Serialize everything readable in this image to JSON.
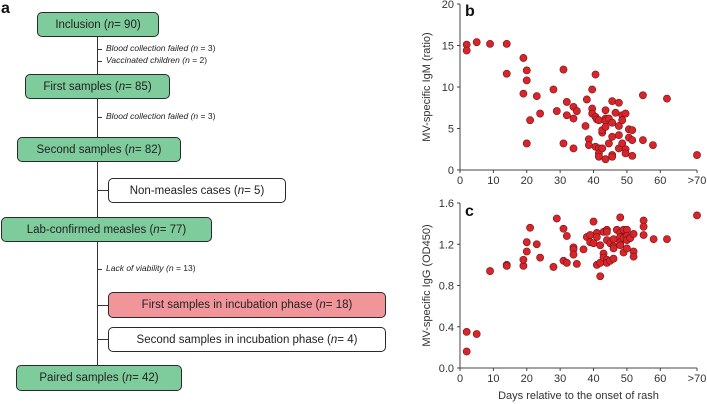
{
  "panel_a": {
    "letter": "a",
    "boxes": [
      {
        "text": "Inclusion (",
        "n": "n",
        "rest": " = 90)"
      },
      {
        "text": "First samples (",
        "n": "n",
        "rest": " = 85)"
      },
      {
        "text": "Second samples (",
        "n": "n",
        "rest": " = 82)"
      },
      {
        "text": "Non-measles cases (",
        "n": "n",
        "rest": " = 5)"
      },
      {
        "text": "Lab-confirmed measles (",
        "n": "n",
        "rest": " = 77)"
      },
      {
        "text": "First samples in incubation phase (",
        "n": "n",
        "rest": " = 18)"
      },
      {
        "text": "Second samples in incubation phase (",
        "n": "n",
        "rest": " = 4)"
      },
      {
        "text": "Paired samples (",
        "n": "n",
        "rest": " = 42)"
      }
    ],
    "notes": [
      {
        "text": "Blood collection failed (",
        "n": "n",
        "rest": " = 3)"
      },
      {
        "text": "Vaccinated children (",
        "n": "n",
        "rest": " = 2)"
      },
      {
        "text": "Blood collection failed (",
        "n": "n",
        "rest": " = 3)"
      },
      {
        "text": "Lack of viability (",
        "n": "n",
        "rest": " = 13)"
      }
    ],
    "colors": {
      "included": "#7ecb9c",
      "highlight": "#f2959b",
      "excluded": "#ffffff"
    }
  },
  "chart_data": [
    {
      "type": "scatter",
      "panel": "b",
      "title": "",
      "xlabel": "",
      "ylabel": "MV-specific IgM (ratio)",
      "xlim": [
        0,
        71
      ],
      "ylim": [
        0,
        20
      ],
      "xticks": [
        0,
        10,
        20,
        30,
        40,
        50,
        60,
        71
      ],
      "xtick_labels": [
        "0",
        "10",
        "20",
        "30",
        "40",
        "50",
        "60",
        ">70"
      ],
      "yticks": [
        0,
        5,
        10,
        15,
        20
      ],
      "ytick_labels": [
        "0",
        "5",
        "10",
        "15",
        "20"
      ],
      "marker_color": "#d7262b",
      "x": [
        2,
        2,
        5,
        9,
        14,
        14,
        19,
        20,
        20,
        19,
        20,
        21,
        23,
        24,
        28,
        29,
        31,
        31,
        32,
        32,
        34,
        34,
        34,
        35,
        38,
        37.6,
        38.6,
        38.6,
        39.6,
        40.6,
        39.6,
        39.6,
        40.6,
        41,
        41.6,
        40.6,
        41.6,
        41.6,
        41.6,
        42.6,
        42.6,
        42.6,
        43.6,
        43.6,
        43.6,
        43.6,
        43.6,
        44.6,
        44.6,
        45.6,
        45.6,
        45.6,
        45.6,
        45.6,
        46.6,
        47.6,
        47.6,
        47.6,
        47.6,
        48.6,
        48.6,
        48.6,
        49.6,
        49.6,
        49.6,
        50.6,
        50.6,
        51.6,
        51.6,
        51.6,
        54.8,
        54.8,
        57.8,
        62,
        71
      ],
      "y": [
        15.1,
        14.4,
        15.4,
        15.2,
        15.2,
        11.6,
        13.5,
        12,
        10.8,
        9.2,
        3.2,
        6,
        8.9,
        6.8,
        9.7,
        7.1,
        12.1,
        3.2,
        8.2,
        6.6,
        7.6,
        6.2,
        2.6,
        7.1,
        8.5,
        5.3,
        3.7,
        3,
        9.7,
        11.5,
        7.4,
        6.8,
        6.4,
        6.1,
        6,
        2.8,
        2.6,
        2,
        1.6,
        2.6,
        4.5,
        4.8,
        7.2,
        6.2,
        5.9,
        5.2,
        1.3,
        3.2,
        6.2,
        8.3,
        5.7,
        4,
        1.8,
        1.6,
        6.9,
        8.1,
        5.3,
        4.2,
        2.6,
        6.6,
        6,
        3.2,
        6.8,
        2.5,
        2,
        4.9,
        3.9,
        4.8,
        3.6,
        1.7,
        9,
        3.6,
        3,
        8.6,
        1.8
      ]
    },
    {
      "type": "scatter",
      "panel": "c",
      "title": "",
      "xlabel": "Days relative to the onset of rash",
      "ylabel": "MV-specific IgG (OD450)",
      "xlim": [
        0,
        71
      ],
      "ylim": [
        0,
        1.6
      ],
      "xticks": [
        0,
        10,
        20,
        30,
        40,
        50,
        60,
        71
      ],
      "xtick_labels": [
        "0",
        "10",
        "20",
        "30",
        "40",
        "50",
        "60",
        ">70"
      ],
      "yticks": [
        0,
        0.4,
        0.8,
        1.2,
        1.6
      ],
      "ytick_labels": [
        "0.0",
        "0.4",
        "0.8",
        "1.2",
        "1.6"
      ],
      "marker_color": "#d7262b",
      "x": [
        2,
        2,
        5,
        9,
        14,
        14,
        19,
        19,
        20,
        20,
        21,
        23,
        24,
        28,
        29,
        31,
        31,
        32,
        32,
        34,
        34,
        34,
        35,
        38,
        37,
        39,
        39,
        40,
        40,
        41,
        41,
        41,
        42,
        42,
        42,
        43,
        43,
        43,
        44,
        44,
        44,
        44,
        44,
        45,
        45,
        46,
        46,
        46,
        46,
        47,
        48,
        48,
        48,
        48,
        48,
        49,
        49,
        49,
        50,
        50,
        50,
        50,
        51,
        52,
        52,
        52,
        55,
        55,
        55,
        58,
        62,
        71
      ],
      "y": [
        0.35,
        0.16,
        0.33,
        0.94,
        1.0,
        0.99,
        0.99,
        1.05,
        1.13,
        1.22,
        1.36,
        1.2,
        1.07,
        0.98,
        1.45,
        1.35,
        1.04,
        1.28,
        1.02,
        1.17,
        1.15,
        1.1,
        1.01,
        1.27,
        1.15,
        1.29,
        1.22,
        1.42,
        1.21,
        1.31,
        1.27,
        1.0,
        1.19,
        0.89,
        1.02,
        1.32,
        1.11,
        1.07,
        1.34,
        1.32,
        1.24,
        1.05,
        1.02,
        1.21,
        1.04,
        1.25,
        1.18,
        1.16,
        1.06,
        1.34,
        1.46,
        1.31,
        1.27,
        1.22,
        1.19,
        1.34,
        1.26,
        1.12,
        1.34,
        1.28,
        1.24,
        1.16,
        1.26,
        1.3,
        1.13,
        1.08,
        1.43,
        1.37,
        1.29,
        1.25,
        1.25,
        1.48
      ]
    }
  ]
}
